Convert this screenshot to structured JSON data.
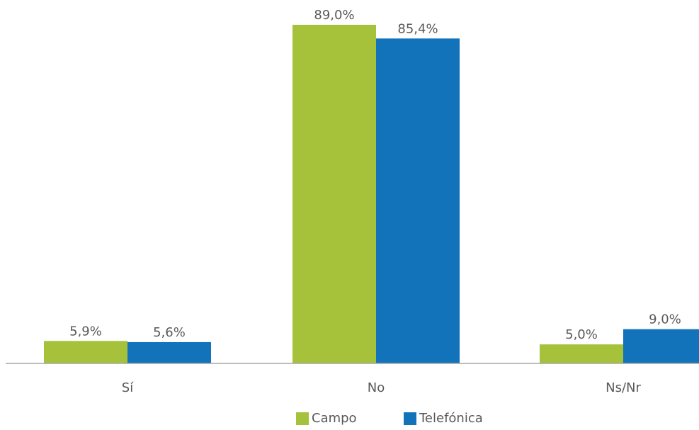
{
  "chart_data": {
    "type": "bar",
    "categories": [
      "Sí",
      "No",
      "Ns/Nr"
    ],
    "series": [
      {
        "name": "Campo",
        "color": "#a5c23a",
        "values": [
          5.9,
          89.0,
          5.0
        ],
        "labels": [
          "5,9%",
          "89,0%",
          "5,0%"
        ]
      },
      {
        "name": "Telefónica",
        "color": "#1273bb",
        "values": [
          5.6,
          85.4,
          9.0
        ],
        "labels": [
          "5,6%",
          "85,4%",
          "9,0%"
        ]
      }
    ],
    "title": "",
    "xlabel": "",
    "ylabel": "",
    "ylim": [
      0,
      89
    ],
    "grid": false,
    "legend_position": "bottom"
  }
}
